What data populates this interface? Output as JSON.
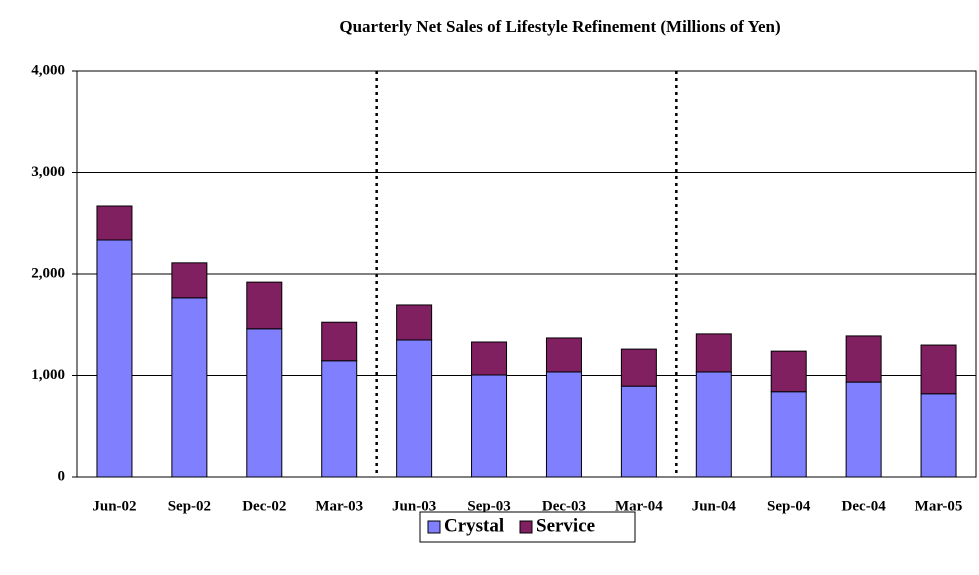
{
  "chart_data": {
    "type": "stacked_bar",
    "title": "Quarterly Net Sales of Lifestyle Refinement (Millions of Yen)",
    "categories": [
      "Jun-02",
      "Sep-02",
      "Dec-02",
      "Mar-03",
      "Jun-03",
      "Sep-03",
      "Dec-03",
      "Mar-04",
      "Jun-04",
      "Sep-04",
      "Dec-04",
      "Mar-05"
    ],
    "series": [
      {
        "name": "Crystal",
        "color": "#8080ff",
        "values": [
          2335,
          1765,
          1460,
          1145,
          1350,
          1005,
          1035,
          895,
          1035,
          840,
          935,
          820
        ]
      },
      {
        "name": "Service",
        "color": "#802060",
        "values": [
          335,
          345,
          460,
          380,
          345,
          325,
          335,
          365,
          375,
          400,
          455,
          480
        ]
      }
    ],
    "ylim": [
      0,
      4000
    ],
    "yticks": [
      0,
      {
        "value": 1000,
        "label": "1,000"
      },
      {
        "value": 2000,
        "label": "2,000"
      },
      {
        "value": 3000,
        "label": "3,000"
      },
      {
        "value": 4000,
        "label": "4,000"
      }
    ],
    "grid": true,
    "legend": "bottom"
  }
}
